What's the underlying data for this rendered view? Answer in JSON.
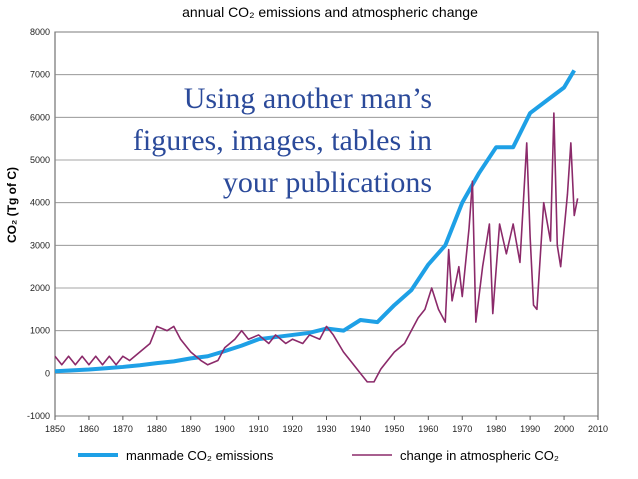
{
  "chart_data": {
    "type": "line",
    "title": "annual CO₂ emissions and atmospheric change",
    "y_label": "CO₂ (Tg of C)",
    "overlay_text": [
      "Using another man’s",
      "figures, images, tables in",
      "your publications"
    ],
    "xlim": [
      1850,
      2010
    ],
    "xticks": [
      1850,
      1860,
      1870,
      1880,
      1890,
      1900,
      1910,
      1920,
      1930,
      1940,
      1950,
      1960,
      1970,
      1980,
      1990,
      2000,
      2010
    ],
    "ylim": [
      -1000,
      8000
    ],
    "yticks": [
      -1000,
      0,
      1000,
      2000,
      3000,
      4000,
      5000,
      6000,
      7000,
      8000
    ],
    "grid": true,
    "series": [
      {
        "name": "manmade CO₂ emissions",
        "color": "#1ea0e6",
        "x": [
          1850,
          1855,
          1860,
          1865,
          1870,
          1875,
          1880,
          1885,
          1890,
          1895,
          1900,
          1905,
          1910,
          1915,
          1920,
          1925,
          1930,
          1935,
          1940,
          1945,
          1950,
          1955,
          1960,
          1965,
          1970,
          1975,
          1980,
          1985,
          1990,
          1995,
          2000,
          2003
        ],
        "values": [
          50,
          70,
          90,
          120,
          150,
          190,
          240,
          280,
          350,
          400,
          520,
          650,
          800,
          850,
          900,
          950,
          1050,
          1000,
          1250,
          1200,
          1600,
          1950,
          2550,
          3000,
          4000,
          4700,
          5300,
          5300,
          6100,
          6400,
          6700,
          7100
        ]
      },
      {
        "name": "change in atmospheric CO₂",
        "color": "#8b2a6a",
        "x": [
          1850,
          1852,
          1854,
          1856,
          1858,
          1860,
          1862,
          1864,
          1866,
          1868,
          1870,
          1872,
          1875,
          1878,
          1880,
          1883,
          1885,
          1887,
          1890,
          1893,
          1895,
          1898,
          1900,
          1903,
          1905,
          1907,
          1910,
          1913,
          1915,
          1918,
          1920,
          1923,
          1925,
          1928,
          1930,
          1932,
          1935,
          1937,
          1940,
          1942,
          1944,
          1946,
          1948,
          1950,
          1953,
          1955,
          1957,
          1959,
          1961,
          1963,
          1965,
          1966,
          1967,
          1969,
          1970,
          1972,
          1973,
          1974,
          1976,
          1978,
          1979,
          1981,
          1983,
          1985,
          1987,
          1989,
          1990,
          1991,
          1992,
          1994,
          1996,
          1997,
          1998,
          1999,
          2001,
          2002,
          2003,
          2004
        ],
        "values": [
          400,
          200,
          400,
          200,
          400,
          200,
          400,
          200,
          400,
          200,
          400,
          300,
          500,
          700,
          1100,
          1000,
          1100,
          800,
          500,
          300,
          200,
          300,
          600,
          800,
          1000,
          800,
          900,
          700,
          900,
          700,
          800,
          700,
          900,
          800,
          1100,
          900,
          500,
          300,
          0,
          -200,
          -200,
          100,
          300,
          500,
          700,
          1000,
          1300,
          1500,
          2000,
          1500,
          1200,
          2900,
          1700,
          2500,
          1800,
          3400,
          4500,
          1200,
          2500,
          3500,
          1400,
          3500,
          2800,
          3500,
          2600,
          5400,
          3200,
          1600,
          1500,
          4000,
          3100,
          6100,
          3000,
          2500,
          4200,
          5400,
          3700,
          4100
        ]
      }
    ]
  }
}
